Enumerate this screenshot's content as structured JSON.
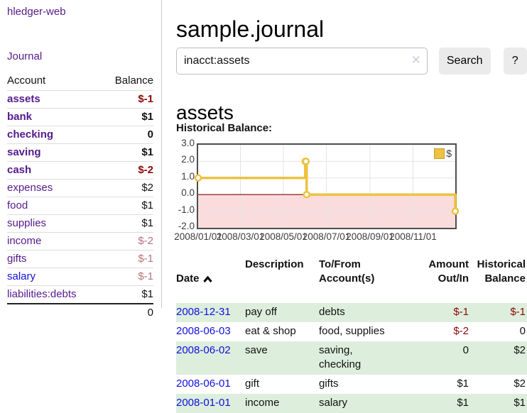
{
  "app": {
    "brand": "hledger-web"
  },
  "colors": {
    "link_purple": "#551a8b",
    "link_blue": "#0f10dd",
    "negative_strong": "#8b0a06",
    "negative_muted": "#b5737b",
    "stripe_green": "#ddeedd",
    "button_bg": "#ebebeb",
    "chart_line": "#edc240",
    "chart_negative_fill": "#fbdcdc",
    "chart_zero_line": "#8b0000"
  },
  "sidebar": {
    "journal_label": "Journal",
    "accounts": {
      "headers": {
        "account": "Account",
        "balance": "Balance"
      },
      "rows": [
        {
          "account": "assets",
          "balance": "$-1"
        },
        {
          "account": "bank",
          "balance": "$1"
        },
        {
          "account": "checking",
          "balance": "0"
        },
        {
          "account": "saving",
          "balance": "$1"
        },
        {
          "account": "cash",
          "balance": "$-2"
        },
        {
          "account": "expenses",
          "balance": "$2"
        },
        {
          "account": "food",
          "balance": "$1"
        },
        {
          "account": "supplies",
          "balance": "$1"
        },
        {
          "account": "income",
          "balance": "$-2"
        },
        {
          "account": "gifts",
          "balance": "$-1"
        },
        {
          "account": "salary",
          "balance": "$-1"
        },
        {
          "account": "liabilities:debts",
          "balance": "$1"
        }
      ],
      "total": "0"
    }
  },
  "header": {
    "title": "sample.journal"
  },
  "search": {
    "value": "inacct:assets",
    "clear_icon": "✕",
    "search_label": "Search",
    "help_label": "?"
  },
  "account_page": {
    "title": "assets"
  },
  "chart_data": {
    "type": "line",
    "step": true,
    "title": "Historical Balance:",
    "series": [
      {
        "name": "$",
        "color": "#edc240",
        "points": [
          [
            "2008-01-01",
            1
          ],
          [
            "2008-06-01",
            2
          ],
          [
            "2008-06-02",
            2
          ],
          [
            "2008-06-03",
            0
          ],
          [
            "2008-12-31",
            -1
          ]
        ]
      }
    ],
    "xlim": [
      "2008-01-01",
      "2008-12-31"
    ],
    "ylim": [
      -2,
      3
    ],
    "yticks": [
      "3.0",
      "2.0",
      "1.0",
      "0.0",
      "-1.0",
      "-2.0"
    ],
    "xticks": [
      "2008/01/01",
      "2008/03/01",
      "2008/05/01",
      "2008/07/01",
      "2008/09/01",
      "2008/11/01"
    ],
    "grid": true,
    "legend_position": "top-right",
    "zero_line_color": "#8b0000",
    "negative_fill": "#fbdcdc"
  },
  "register": {
    "headers": {
      "date": "Date",
      "description": "Description",
      "accounts": "To/From\nAccount(s)",
      "amount": "Amount\nOut/In",
      "historical": "Historical\nBalance"
    },
    "rows": [
      {
        "date": "2008-12-31",
        "description": "pay off",
        "accounts": "debts",
        "amount": "$-1",
        "historical": "$-1"
      },
      {
        "date": "2008-06-03",
        "description": "eat & shop",
        "accounts": "food, supplies",
        "amount": "$-2",
        "historical": "0"
      },
      {
        "date": "2008-06-02",
        "description": "save",
        "accounts": "saving,\nchecking",
        "amount": "0",
        "historical": "$2"
      },
      {
        "date": "2008-06-01",
        "description": "gift",
        "accounts": "gifts",
        "amount": "$1",
        "historical": "$2"
      },
      {
        "date": "2008-01-01",
        "description": "income",
        "accounts": "salary",
        "amount": "$1",
        "historical": "$1"
      }
    ]
  }
}
